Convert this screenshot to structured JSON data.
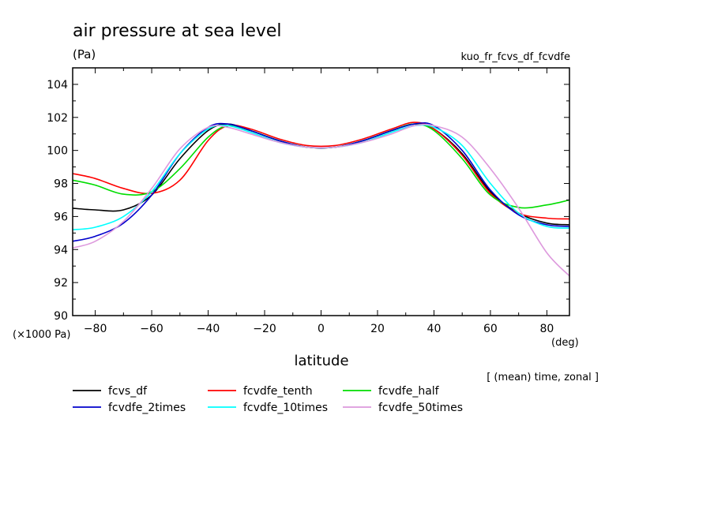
{
  "header": {
    "title": "air pressure at sea level",
    "units": "(Pa)",
    "experiment": "kuo_fr_fcvs_df_fcvdfe",
    "scale_note": "(×1000 Pa)",
    "x_unit": "(deg)",
    "averaging_note": "[ (mean) time, zonal ]"
  },
  "chart_data": {
    "type": "line",
    "title": "air pressure at sea level",
    "xlabel": "latitude",
    "ylabel": "(Pa)",
    "xlim": [
      -88,
      88
    ],
    "ylim": [
      90,
      105
    ],
    "xticks": [
      -80,
      -60,
      -40,
      -20,
      0,
      20,
      40,
      60,
      80
    ],
    "yticks": [
      90,
      92,
      94,
      96,
      98,
      100,
      102,
      104
    ],
    "legend_position": "bottom",
    "x": [
      -88,
      -80,
      -70,
      -60,
      -50,
      -40,
      -33,
      -25,
      -15,
      -5,
      5,
      15,
      25,
      33,
      40,
      50,
      60,
      70,
      80,
      88
    ],
    "series": [
      {
        "name": "fcvs_df",
        "color": "#000000",
        "values": [
          96.5,
          96.4,
          96.4,
          97.3,
          99.5,
          101.2,
          101.6,
          101.2,
          100.6,
          100.2,
          100.2,
          100.6,
          101.2,
          101.6,
          101.3,
          99.8,
          97.5,
          96.2,
          95.6,
          95.5
        ]
      },
      {
        "name": "fcvdfe_tenth",
        "color": "#ff0000",
        "values": [
          98.6,
          98.3,
          97.7,
          97.4,
          98.2,
          100.6,
          101.5,
          101.3,
          100.7,
          100.3,
          100.3,
          100.7,
          101.3,
          101.7,
          101.3,
          99.7,
          97.4,
          96.2,
          95.9,
          95.85
        ]
      },
      {
        "name": "fcvdfe_half",
        "color": "#00dd00",
        "values": [
          98.2,
          97.9,
          97.35,
          97.5,
          98.9,
          100.8,
          101.5,
          101.2,
          100.6,
          100.2,
          100.2,
          100.6,
          101.2,
          101.6,
          101.2,
          99.5,
          97.3,
          96.55,
          96.7,
          97.0
        ]
      },
      {
        "name": "fcvdfe_2times",
        "color": "#0000cc",
        "values": [
          94.5,
          94.8,
          95.6,
          97.3,
          99.8,
          101.4,
          101.6,
          101.2,
          100.6,
          100.2,
          100.2,
          100.6,
          101.2,
          101.6,
          101.5,
          100.0,
          97.6,
          96.1,
          95.5,
          95.4
        ]
      },
      {
        "name": "fcvdfe_10times",
        "color": "#00ffff",
        "values": [
          95.2,
          95.35,
          96.0,
          97.5,
          99.8,
          101.3,
          101.5,
          101.1,
          100.5,
          100.2,
          100.2,
          100.5,
          101.1,
          101.5,
          101.4,
          100.3,
          98.0,
          96.2,
          95.4,
          95.3
        ]
      },
      {
        "name": "fcvdfe_50times",
        "color": "#dd99dd",
        "values": [
          94.1,
          94.5,
          95.7,
          97.7,
          100.1,
          101.4,
          101.4,
          101.0,
          100.5,
          100.2,
          100.2,
          100.5,
          101.0,
          101.5,
          101.5,
          100.8,
          98.9,
          96.5,
          93.8,
          92.4
        ]
      }
    ]
  }
}
